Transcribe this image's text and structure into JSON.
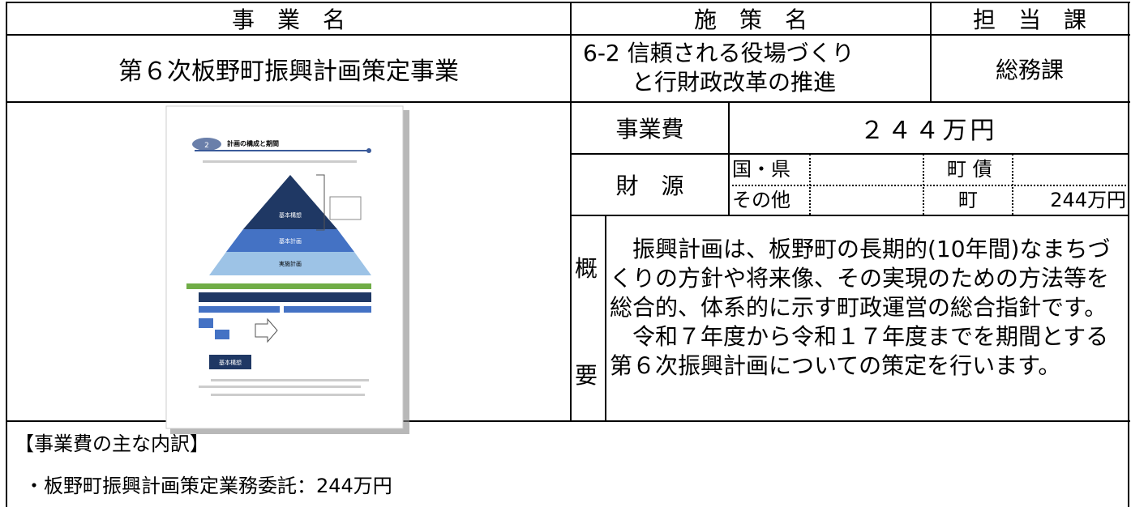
{
  "header": {
    "project_label": "事　業　名",
    "policy_label": "施　策　名",
    "department_label": "担　当　課"
  },
  "project": {
    "name": "第６次板野町振興計画策定事業",
    "policy": [
      "6-2 信頼される役場づくり",
      "と行財政改革の推進"
    ],
    "department": "総務課"
  },
  "cost": {
    "label": "事業費",
    "value": "２４４万円"
  },
  "funding": {
    "label": "財　源",
    "national_pref": "国・県",
    "town_bond": "町 債",
    "other": "その他",
    "town": "町",
    "town_amount": "244万円"
  },
  "summary": {
    "label": [
      "概",
      "要"
    ],
    "paragraphs": [
      "　振興計画は、板野町の長期的(10年間)なまちづくりの方針や将来像、その実現のための方法等を総合的、体系的に示す町政運営の総合指針です。",
      "　令和７年度から令和１７年度までを期間とする第６次振興計画についての策定を行います。"
    ]
  },
  "image": {
    "section_number": "2",
    "section_title": "計画の構成と期間",
    "pyramid": [
      "基本構想",
      "基本計画",
      "実施計画"
    ],
    "box_title": "基本構想"
  },
  "breakdown": {
    "title": "【事業費の主な内訳】",
    "items": [
      "・板野町振興計画策定業務委託：244万円"
    ]
  }
}
